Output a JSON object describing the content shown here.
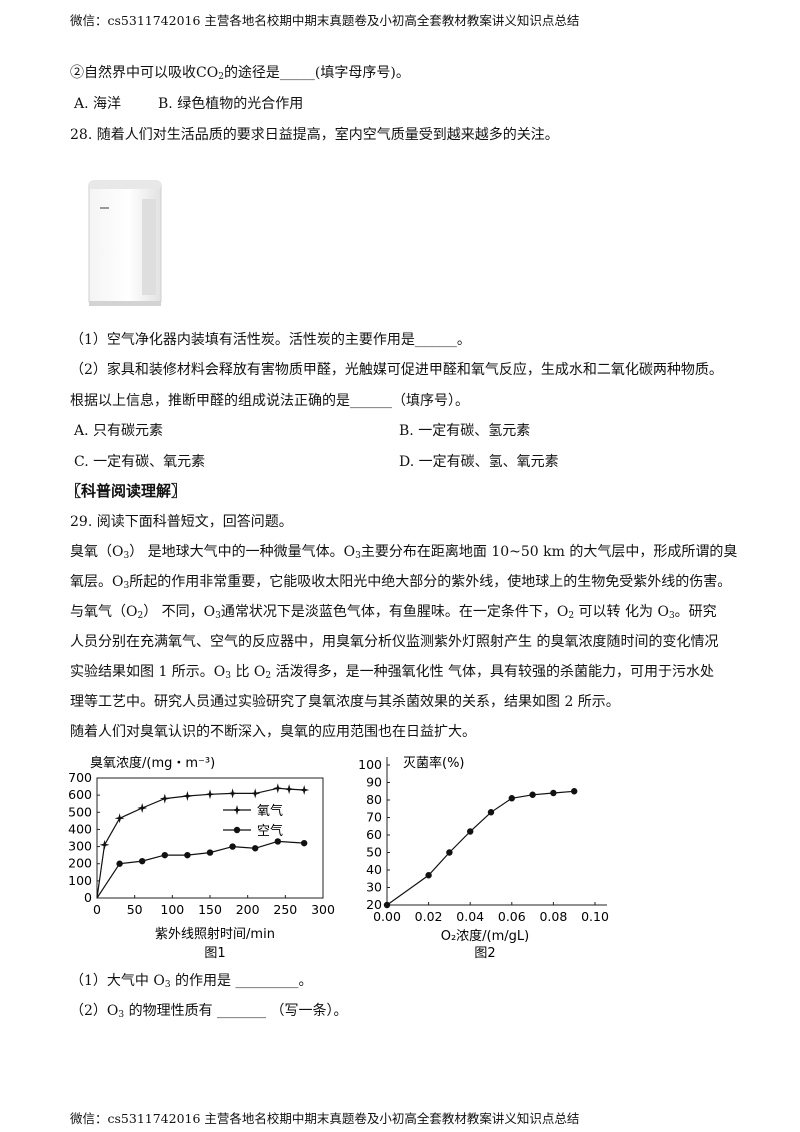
{
  "header": "微信：cs5311742016  主营各地名校期中期末真题卷及小初高全套教材教案讲义知识点总结",
  "footer": "微信：cs5311742016  主营各地名校期中期末真题卷及小初高全套教材教案讲义知识点总结",
  "q27": {
    "line_pre": "②自然界中可以吸收CO",
    "line_sub": "2",
    "line_post": "的途径是_____(填字母序号)。",
    "opt_a": "A.  海洋",
    "opt_b": "B.  绿色植物的光合作用"
  },
  "q28": {
    "stem": "28. 随着人们对生活品质的要求日益提高，室内空气质量受到越来越多的关注。",
    "p1": "（1）空气净化器内装填有活性炭。活性炭的主要作用是______。",
    "p2": "（2）家具和装修材料会释放有害物质甲醛，光触媒可促进甲醛和氧气反应，生成水和二氧化碳两种物质。",
    "p3": "根据以上信息，推断甲醛的组成说法正确的是______（填序号）。",
    "opt_a": "A. 只有碳元素",
    "opt_b": "B. 一定有碳、氢元素",
    "opt_c": "C. 一定有碳、氧元素",
    "opt_d": "D. 一定有碳、氢、氧元素"
  },
  "section_title": "〖科普阅读理解〗",
  "q29": {
    "stem": "29. 阅读下面科普短文，回答问题。",
    "l1a": "臭氧（O",
    "l1b": "3",
    "l1c": "）  是地球大气中的一种微量气体。O",
    "l1d": "3",
    "l1e": "主要分布在距离地面 10~50 km 的大气层中，形成所谓的臭",
    "l2a": "氧层。O",
    "l2b": "3",
    "l2c": "所起的作用非常重要，它能吸收太阳光中绝大部分的紫外线，使地球上的生物免受紫外线的伤害。",
    "l3a": "与氧气（O",
    "l3b": "2",
    "l3c": "）  不同，O",
    "l3d": "3",
    "l3e": "通常状况下是淡蓝色气体，有鱼腥味。在一定条件下，O",
    "l3f": "2",
    "l3g": " 可以转  化为 O",
    "l3h": "3",
    "l3i": "。研究",
    "l4": "人员分别在充满氧气、空气的反应器中，用臭氧分析仪监测紫外灯照射产生  的臭氧浓度随时间的变化情况",
    "l5a": "实验结果如图 1 所示。O",
    "l5b": "3",
    "l5c": " 比 O",
    "l5d": "2",
    "l5e": " 活泼得多，是一种强氧化性  气体，具有较强的杀菌能力，可用于污水处",
    "l6": "理等工艺中。研究人员通过实验研究了臭氧浓度与其杀菌效果的关系，结果如图 2 所示。",
    "l7": "随着人们对臭氧认识的不断深入，臭氧的应用范围也在日益扩大。",
    "sub1a": "（1）大气中 O",
    "sub1b": "3",
    "sub1c": " 的作用是 _________。",
    "sub2a": "（2）O",
    "sub2b": "3",
    "sub2c": " 的物理性质有 _______  （写一条）。"
  },
  "chart_data": [
    {
      "type": "line",
      "ylabel": "臭氧浓度/(mg・m⁻³)",
      "xlabel": "紫外线照射时间/min",
      "caption": "图1",
      "xlim": [
        0,
        300
      ],
      "ylim": [
        0,
        700
      ],
      "xticks": [
        "0",
        "50",
        "100",
        "150",
        "200",
        "250",
        "300"
      ],
      "yticks": [
        "0",
        "100",
        "200",
        "300",
        "400",
        "500",
        "600",
        "700"
      ],
      "series": [
        {
          "name": "氧气",
          "marker": "star",
          "x": [
            0,
            10,
            30,
            60,
            90,
            120,
            150,
            180,
            210,
            240,
            255,
            275
          ],
          "y": [
            0,
            310,
            465,
            525,
            580,
            595,
            605,
            610,
            610,
            640,
            635,
            630
          ]
        },
        {
          "name": "空气",
          "marker": "dot",
          "x": [
            0,
            30,
            60,
            90,
            120,
            150,
            180,
            210,
            240,
            275
          ],
          "y": [
            0,
            200,
            215,
            250,
            250,
            265,
            300,
            290,
            330,
            320
          ]
        }
      ]
    },
    {
      "type": "line",
      "ylabel": "灭菌率(%)",
      "xlabel": "O₂浓度/(m/gL)",
      "caption": "图2",
      "xlim": [
        0,
        0.1
      ],
      "ylim": [
        20,
        100
      ],
      "xticks": [
        "0.00",
        "0.02",
        "0.04",
        "0.06",
        "0.08",
        "0.10"
      ],
      "yticks": [
        "20",
        "30",
        "40",
        "50",
        "60",
        "70",
        "80",
        "90",
        "100"
      ],
      "series": [
        {
          "marker": "dot",
          "x": [
            0.0,
            0.02,
            0.03,
            0.04,
            0.05,
            0.06,
            0.07,
            0.08,
            0.09
          ],
          "y": [
            20,
            37,
            50,
            62,
            73,
            81,
            83,
            84,
            85
          ]
        }
      ]
    }
  ]
}
